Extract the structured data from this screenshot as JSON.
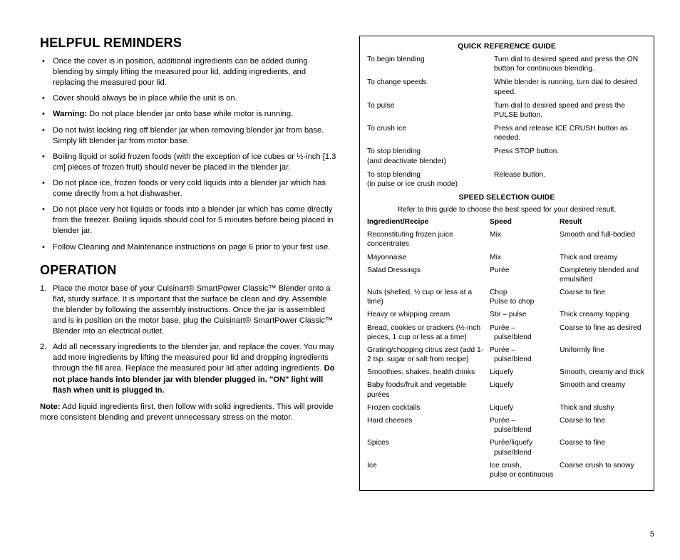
{
  "helpful_reminders": {
    "title": "HELPFUL REMINDERS",
    "items": [
      {
        "text": "Once the cover is in position, additional ingredients can be added during blending by simply lifting the measured pour lid, adding ingredients, and replacing the measured pour lid."
      },
      {
        "text": "Cover should always be in place while the unit is on."
      },
      {
        "prefix_bold": "Warning:",
        "text": " Do not place blender jar onto base while motor is running."
      },
      {
        "text": "Do not twist locking ring off blender jar when removing blender jar from base. Simply lift blender jar from motor base."
      },
      {
        "text": "Boiling liquid or solid frozen foods (with the exception of ice cubes or ½-inch [1.3 cm] pieces of frozen fruit) should never be placed in the blender jar."
      },
      {
        "text": "Do not place ice, frozen foods or very cold liquids into a blender jar which has come directly from a hot dishwasher."
      },
      {
        "text": "Do not place very hot liquids or foods into a blender jar which has come directly from the freezer. Boiling liquids should cool for 5 minutes before being placed in blender jar."
      },
      {
        "text": "Follow Cleaning and Maintenance instructions on page 6 prior to your first use."
      }
    ]
  },
  "operation": {
    "title": "OPERATION",
    "steps": [
      {
        "text": "Place the motor base of your Cuisinart® SmartPower Classic™ Blender onto a flat, sturdy surface. It is important that the surface be clean and dry. Assemble the blender by following the assembly instructions. Once the jar is assembled and is in position on the motor base, plug the Cuisinart® SmartPower Classic™ Blender into an electrical outlet."
      },
      {
        "text": "Add all necessary ingredients to the blender jar, and replace the cover. You may add more ingredients by lifting the measured pour lid and dropping ingredients through the fill area. Replace the measured pour lid after adding ingredients. ",
        "suffix_bold": "Do not place hands into blender jar with blender plugged in. \"ON\" light will flash when unit is plugged in."
      }
    ],
    "note_label": "Note:",
    "note_text": " Add liquid ingredients first, then follow with solid ingredients. This will provide more consistent blending and prevent unnecessary stress on the motor."
  },
  "quick_reference": {
    "title": "QUICK REFERENCE GUIDE",
    "rows": [
      {
        "l": "To begin blending",
        "r": "Turn dial to desired speed and press the ON button for continuous blending."
      },
      {
        "l": "To change speeds",
        "r": "While blender is running, turn dial to desired speed."
      },
      {
        "l": "To pulse",
        "r": "Turn dial to desired speed and press the PULSE button."
      },
      {
        "l": "To crush ice",
        "r": "Press and release ICE CRUSH button as needed."
      },
      {
        "l": "To stop blending",
        "l2": "(and deactivate blender)",
        "r": "Press STOP button."
      },
      {
        "l": "To stop blending",
        "l2": "(in pulse or ice crush mode)",
        "r": "Release button."
      }
    ]
  },
  "speed_guide": {
    "title": "SPEED SELECTION GUIDE",
    "intro": "Refer to this guide to choose the best speed for your desired result.",
    "header": {
      "c1": "Ingredient/Recipe",
      "c2": "Speed",
      "c3": "Result"
    },
    "rows": [
      {
        "c1": "Reconstituting frozen juice concentrates",
        "c2": "Mix",
        "c3": "Smooth and full-bodied"
      },
      {
        "c1": "Mayonnaise",
        "c2": "Mix",
        "c3": "Thick and creamy"
      },
      {
        "c1": "Salad Dressings",
        "c2": "Purée",
        "c3": "Completely blended and emulsified"
      },
      {
        "c1": "Nuts (shelled, ½ cup or less at a time)",
        "c2": "Chop",
        "c2b": "Pulse to chop",
        "c3": "Coarse to fine"
      },
      {
        "c1": "Heavy or whipping cream",
        "c2": "Stir – pulse",
        "c3": "Thick creamy topping"
      },
      {
        "c1": "Bread, cookies or crackers (½-inch pieces, 1 cup or less at a time)",
        "c2": "Purée –",
        "c2b_i": "pulse/blend",
        "c3": "Coarse to fine as desired"
      },
      {
        "c1": "Grating/chopping citrus zest (add 1-2 tsp. sugar or salt from recipe)",
        "c2": "Purée –",
        "c2b_i": "pulse/blend",
        "c3": "Uniformly fine"
      },
      {
        "c1": "Smoothies, shakes, health drinks",
        "c2": "Liquefy",
        "c3": "Smooth, creamy and thick"
      },
      {
        "c1": "Baby foods/fruit and vegetable purées",
        "c2": "Liquefy",
        "c3": "Smooth and creamy"
      },
      {
        "c1": "Frozen cocktails",
        "c2": "Liquefy",
        "c3": "Thick and slushy"
      },
      {
        "c1": "Hard cheeses",
        "c2": "Purée –",
        "c2b_i": "pulse/blend",
        "c3": "Coarse to fine"
      },
      {
        "c1": "Spices",
        "c2": "Purée/liquefy",
        "c2b_i": "pulse/blend",
        "c3": "Coarse to fine"
      },
      {
        "c1": "Ice",
        "c2": "Ice crush,",
        "c2b": "pulse or continuous",
        "c3": "Coarse crush to snowy"
      }
    ]
  },
  "page_number": "5"
}
